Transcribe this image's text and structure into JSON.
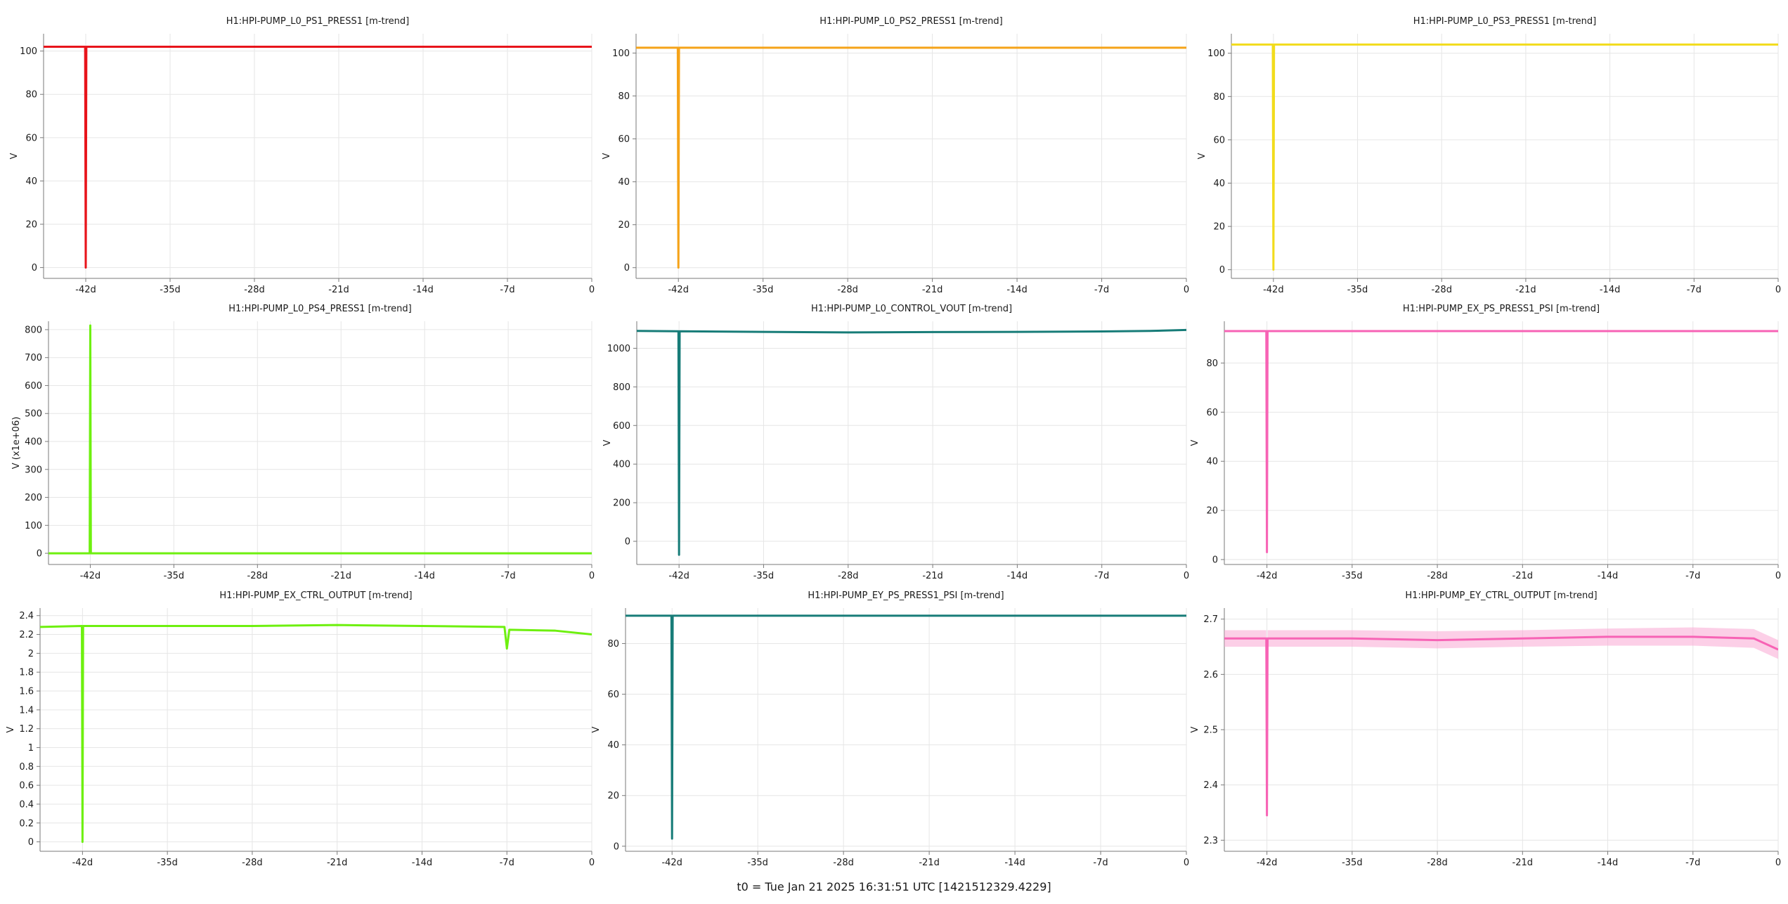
{
  "footer": "t0 = Tue Jan 21 2025 16:31:51 UTC [1421512329.4229]",
  "chart_data": [
    {
      "type": "line",
      "title": "H1:HPI-PUMP_L0_PS1_PRESS1 [m-trend]",
      "xlabel": "",
      "ylabel": "V",
      "x_tick_labels": [
        "-42d",
        "-35d",
        "-28d",
        "-21d",
        "-14d",
        "-7d",
        "0"
      ],
      "x_ticks_days": [
        -42,
        -35,
        -28,
        -21,
        -14,
        -7,
        0
      ],
      "xlim_days": [
        -45.5,
        0
      ],
      "ylim": [
        -5,
        108
      ],
      "y_ticks": [
        0,
        20,
        40,
        60,
        80,
        100
      ],
      "y_tick_labels": [
        "0",
        "20",
        "40",
        "60",
        "80",
        "100"
      ],
      "grid": true,
      "color": "#e8141b",
      "series": [
        {
          "x_days": [
            -45.5,
            -42.05,
            -42,
            -41.95,
            0
          ],
          "values": [
            102,
            102,
            0,
            102,
            102
          ]
        }
      ]
    },
    {
      "type": "line",
      "title": "H1:HPI-PUMP_L0_PS2_PRESS1 [m-trend]",
      "xlabel": "",
      "ylabel": "V",
      "x_tick_labels": [
        "-42d",
        "-35d",
        "-28d",
        "-21d",
        "-14d",
        "-7d",
        "0"
      ],
      "x_ticks_days": [
        -42,
        -35,
        -28,
        -21,
        -14,
        -7,
        0
      ],
      "xlim_days": [
        -45.5,
        0
      ],
      "ylim": [
        -5,
        109
      ],
      "y_ticks": [
        0,
        20,
        40,
        60,
        80,
        100
      ],
      "y_tick_labels": [
        "0",
        "20",
        "40",
        "60",
        "80",
        "100"
      ],
      "grid": true,
      "color": "#f5a319",
      "series": [
        {
          "x_days": [
            -45.5,
            -42.05,
            -42,
            -41.95,
            0
          ],
          "values": [
            102.5,
            102.5,
            0,
            102.5,
            102.5
          ]
        }
      ]
    },
    {
      "type": "line",
      "title": "H1:HPI-PUMP_L0_PS3_PRESS1 [m-trend]",
      "xlabel": "",
      "ylabel": "V",
      "x_tick_labels": [
        "-42d",
        "-35d",
        "-28d",
        "-21d",
        "-14d",
        "-7d",
        "0"
      ],
      "x_ticks_days": [
        -42,
        -35,
        -28,
        -21,
        -14,
        -7,
        0
      ],
      "xlim_days": [
        -45.5,
        0
      ],
      "ylim": [
        -4,
        109
      ],
      "y_ticks": [
        0,
        20,
        40,
        60,
        80,
        100
      ],
      "y_tick_labels": [
        "0",
        "20",
        "40",
        "60",
        "80",
        "100"
      ],
      "grid": true,
      "color": "#f2dc1c",
      "series": [
        {
          "x_days": [
            -45.5,
            -42.05,
            -42,
            -41.95,
            0
          ],
          "values": [
            104,
            104,
            0,
            104,
            104
          ]
        }
      ]
    },
    {
      "type": "line",
      "title": "H1:HPI-PUMP_L0_PS4_PRESS1 [m-trend]",
      "xlabel": "",
      "ylabel": "V (x1e+06)",
      "x_tick_labels": [
        "-42d",
        "-35d",
        "-28d",
        "-21d",
        "-14d",
        "-7d",
        "0"
      ],
      "x_ticks_days": [
        -42,
        -35,
        -28,
        -21,
        -14,
        -7,
        0
      ],
      "xlim_days": [
        -45.5,
        0
      ],
      "ylim": [
        -40,
        830
      ],
      "y_ticks": [
        0,
        100,
        200,
        300,
        400,
        500,
        600,
        700,
        800
      ],
      "y_tick_labels": [
        "0",
        "100",
        "200",
        "300",
        "400",
        "500",
        "600",
        "700",
        "800"
      ],
      "grid": true,
      "color": "#6ef00f",
      "series": [
        {
          "x_days": [
            -45.5,
            -42.05,
            -42,
            -41.95,
            0
          ],
          "values": [
            0,
            0,
            815,
            0,
            0
          ]
        }
      ]
    },
    {
      "type": "line",
      "title": "H1:HPI-PUMP_L0_CONTROL_VOUT [m-trend]",
      "xlabel": "",
      "ylabel": "V",
      "x_tick_labels": [
        "-42d",
        "-35d",
        "-28d",
        "-21d",
        "-14d",
        "-7d",
        "0"
      ],
      "x_ticks_days": [
        -42,
        -35,
        -28,
        -21,
        -14,
        -7,
        0
      ],
      "xlim_days": [
        -45.5,
        0
      ],
      "ylim": [
        -120,
        1140
      ],
      "y_ticks": [
        0,
        200,
        400,
        600,
        800,
        1000
      ],
      "y_tick_labels": [
        "0",
        "200",
        "400",
        "600",
        "800",
        "1000"
      ],
      "grid": true,
      "color": "#177c78",
      "series": [
        {
          "x_days": [
            -45.5,
            -42.05,
            -42,
            -41.95,
            -35,
            -28,
            -21,
            -14,
            -7,
            -3,
            0
          ],
          "values": [
            1090,
            1088,
            -70,
            1088,
            1085,
            1082,
            1084,
            1085,
            1087,
            1090,
            1095
          ]
        }
      ]
    },
    {
      "type": "line",
      "title": "H1:HPI-PUMP_EX_PS_PRESS1_PSI [m-trend]",
      "xlabel": "",
      "ylabel": "V",
      "x_tick_labels": [
        "-42d",
        "-35d",
        "-28d",
        "-21d",
        "-14d",
        "-7d",
        "0"
      ],
      "x_ticks_days": [
        -42,
        -35,
        -28,
        -21,
        -14,
        -7,
        0
      ],
      "xlim_days": [
        -45.5,
        0
      ],
      "ylim": [
        -2,
        97
      ],
      "y_ticks": [
        0,
        20,
        40,
        60,
        80
      ],
      "y_tick_labels": [
        "0",
        "20",
        "40",
        "60",
        "80"
      ],
      "grid": true,
      "color": "#f763b5",
      "series": [
        {
          "x_days": [
            -45.5,
            -42.05,
            -42,
            -41.95,
            0
          ],
          "values": [
            93,
            93,
            3,
            93,
            93
          ]
        }
      ]
    },
    {
      "type": "line",
      "title": "H1:HPI-PUMP_EX_CTRL_OUTPUT [m-trend]",
      "xlabel": "",
      "ylabel": "V",
      "x_tick_labels": [
        "-42d",
        "-35d",
        "-28d",
        "-21d",
        "-14d",
        "-7d",
        "0"
      ],
      "x_ticks_days": [
        -42,
        -35,
        -28,
        -21,
        -14,
        -7,
        0
      ],
      "xlim_days": [
        -45.5,
        0
      ],
      "ylim": [
        -0.1,
        2.48
      ],
      "y_ticks": [
        0,
        0.2,
        0.4,
        0.6,
        0.8,
        1,
        1.2,
        1.4,
        1.6,
        1.8,
        2,
        2.2,
        2.4
      ],
      "y_tick_labels": [
        "0",
        "0.2",
        "0.4",
        "0.6",
        "0.8",
        "1",
        "1.2",
        "1.4",
        "1.6",
        "1.8",
        "2",
        "2.2",
        "2.4"
      ],
      "grid": true,
      "color": "#6ef00f",
      "series": [
        {
          "x_days": [
            -45.5,
            -42.05,
            -42,
            -41.95,
            -35,
            -28,
            -21,
            -14,
            -7.2,
            -7,
            -6.8,
            -3,
            0
          ],
          "values": [
            2.28,
            2.29,
            0,
            2.29,
            2.29,
            2.29,
            2.3,
            2.29,
            2.28,
            2.05,
            2.25,
            2.24,
            2.2
          ]
        }
      ]
    },
    {
      "type": "line",
      "title": "H1:HPI-PUMP_EY_PS_PRESS1_PSI [m-trend]",
      "xlabel": "",
      "ylabel": "V",
      "x_tick_labels": [
        "-42d",
        "-35d",
        "-28d",
        "-21d",
        "-14d",
        "-7d",
        "0"
      ],
      "x_ticks_days": [
        -42,
        -35,
        -28,
        -21,
        -14,
        -7,
        0
      ],
      "xlim_days": [
        -45.8,
        0
      ],
      "ylim": [
        -2,
        94
      ],
      "y_ticks": [
        0,
        20,
        40,
        60,
        80
      ],
      "y_tick_labels": [
        "0",
        "20",
        "40",
        "60",
        "80"
      ],
      "grid": true,
      "color": "#177c78",
      "series": [
        {
          "x_days": [
            -45.8,
            -42.05,
            -42,
            -41.95,
            0
          ],
          "values": [
            91,
            91,
            3,
            91,
            91
          ]
        }
      ]
    },
    {
      "type": "line",
      "title": "H1:HPI-PUMP_EY_CTRL_OUTPUT [m-trend]",
      "xlabel": "",
      "ylabel": "V",
      "x_tick_labels": [
        "-42d",
        "-35d",
        "-28d",
        "-21d",
        "-14d",
        "-7d",
        "0"
      ],
      "x_ticks_days": [
        -42,
        -35,
        -28,
        -21,
        -14,
        -7,
        0
      ],
      "xlim_days": [
        -45.5,
        0
      ],
      "ylim": [
        2.28,
        2.72
      ],
      "y_ticks": [
        2.3,
        2.4,
        2.5,
        2.6,
        2.7
      ],
      "y_tick_labels": [
        "2.3",
        "2.4",
        "2.5",
        "2.6",
        "2.7"
      ],
      "grid": true,
      "color": "#f763b5",
      "band_color": "#f9a8d4",
      "series": [
        {
          "x_days": [
            -45.5,
            -42.05,
            -42,
            -41.95,
            -35,
            -28,
            -21,
            -14,
            -7,
            -2,
            0
          ],
          "values": [
            2.665,
            2.665,
            2.345,
            2.665,
            2.665,
            2.662,
            2.665,
            2.668,
            2.668,
            2.665,
            2.645
          ]
        },
        {
          "x_days": [
            -45.5,
            -42.05,
            -42,
            -41.95,
            -35,
            -28,
            -21,
            -14,
            -7,
            -2,
            0
          ],
          "values": [
            2.68,
            2.68,
            2.345,
            2.68,
            2.68,
            2.678,
            2.68,
            2.683,
            2.685,
            2.682,
            2.662
          ]
        },
        {
          "x_days": [
            -45.5,
            -42.05,
            -42,
            -41.95,
            -35,
            -28,
            -21,
            -14,
            -7,
            -2,
            0
          ],
          "values": [
            2.65,
            2.65,
            2.3,
            2.65,
            2.65,
            2.647,
            2.65,
            2.652,
            2.652,
            2.648,
            2.628
          ]
        }
      ]
    }
  ]
}
